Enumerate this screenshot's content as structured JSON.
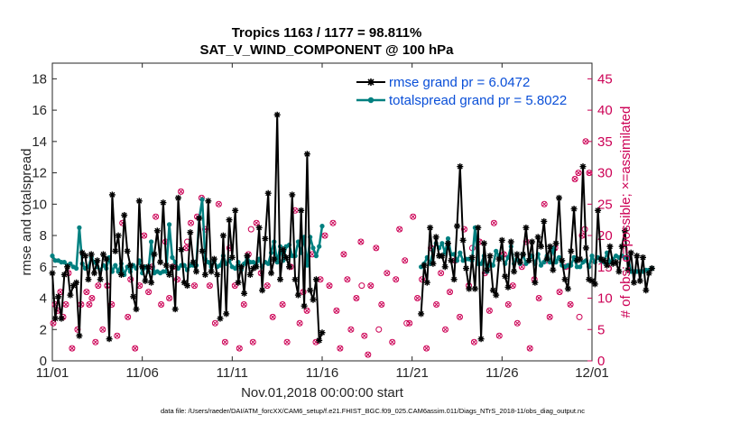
{
  "chart_data": {
    "type": "line",
    "title_line1": "Tropics 1163 / 1177 = 98.811%",
    "title_line2": "SAT_V_WIND_COMPONENT @ 100 hPa",
    "xlabel": "Nov.01,2018 00:00:00 start",
    "ylabel": "rmse and totalspread",
    "ylabel_right": "# of obs: o=possible; ×=assimilated",
    "footer": "data file: /Users/raeder/DAI/ATM_forcXX/CAM6_setup/f.e21.FHIST_BGC.f09_025.CAM6assim.011/Diags_NTrS_2018-11/obs_diag_output.nc",
    "xlim": [
      0,
      30
    ],
    "ylim": [
      0,
      19
    ],
    "ylim_right": [
      0,
      47.5
    ],
    "x_ticks": [
      0,
      5,
      10,
      15,
      20,
      25,
      30
    ],
    "x_tick_labels": [
      "11/01",
      "11/06",
      "11/11",
      "11/16",
      "11/21",
      "11/26",
      "12/01"
    ],
    "y_ticks": [
      0,
      2,
      4,
      6,
      8,
      10,
      12,
      14,
      16,
      18
    ],
    "y_tick_labels": [
      "0",
      "2",
      "4",
      "6",
      "8",
      "10",
      "12",
      "14",
      "16",
      "18"
    ],
    "y_ticks_right": [
      0,
      5,
      10,
      15,
      20,
      25,
      30,
      35,
      40,
      45
    ],
    "y_tick_labels_right": [
      "0",
      "5",
      "10",
      "15",
      "20",
      "25",
      "30",
      "35",
      "40",
      "45"
    ],
    "legend_position": "top-right",
    "colors": {
      "rmse": "#000000",
      "spread": "#008080",
      "obs": "#cc0055",
      "legend_text": "#0a4fd8"
    },
    "series": [
      {
        "name": "rmse grand pr = 6.0472",
        "segments": [
          {
            "x0": 0,
            "values": [
              5.6,
              2.7,
              4.1,
              2.7,
              5.5,
              6.0,
              4.2,
              4.8,
              5.0,
              1.6,
              6.9,
              6.7,
              5.2,
              6.8,
              5.6,
              6.4,
              5.2,
              6.8,
              6.5,
              1.4,
              10.6,
              7.0,
              8.0,
              5.5,
              9.3,
              7.0,
              6.1,
              4.1,
              3.3,
              10.2,
              6.0,
              5.1,
              6.0,
              5.0,
              6.8,
              8.3,
              6.3,
              10.1,
              6.1,
              5.5,
              6.0,
              3.3,
              10.4,
              7.1,
              5.0,
              4.8,
              8.2,
              6.3,
              5.7,
              9.1,
              7.0,
              5.5,
              10.2,
              5.7,
              6.5,
              5.5,
              2.7,
              8.0,
              3.0,
              9.0,
              6.6,
              9.6,
              5.0,
              6.0,
              4.3,
              6.7,
              5.5,
              5.9,
              6.0,
              8.5,
              4.5,
              7.8,
              10.7,
              5.6,
              6.5,
              15.7,
              5.2,
              7.1,
              6.6,
              6.0,
              10.6,
              5.2,
              4.2,
              9.6,
              3.5,
              13.2,
              4.5,
              3.9,
              5.2,
              1.3,
              1.8
            ]
          },
          {
            "x0": 20.5,
            "values": [
              3.0,
              6.1,
              5.0,
              8.5,
              6.2,
              7.9,
              6.7,
              6.7,
              6.0,
              7.5,
              6.4,
              5.2,
              8.6,
              12.4,
              7.7,
              5.9,
              4.6,
              6.6,
              4.6,
              8.5,
              1.4,
              7.5,
              5.8,
              6.7,
              4.5,
              4.2,
              6.5,
              7.7,
              5.4,
              4.7,
              7.6,
              5.7,
              6.8,
              6.3,
              6.8,
              8.5,
              6.4,
              7.6,
              5.0,
              7.9,
              7.3,
              8.9,
              6.5,
              7.3,
              5.8,
              7.5,
              10.4,
              6.4,
              5.2,
              4.6,
              7.0,
              9.7,
              6.4,
              6.5,
              12.4,
              7.2,
              5.2,
              5.1,
              4.9,
              9.6,
              6.5,
              6.4,
              6.1,
              7.3,
              6.2,
              6.3,
              5.7,
              7.3,
              8.3,
              5.8,
              6.9,
              5.0,
              6.7,
              5.1,
              6.6,
              4.5,
              5.6,
              5.9
            ]
          }
        ]
      },
      {
        "name": "totalspread grand pr = 5.8022",
        "segments": [
          {
            "x0": 0,
            "values": [
              6.7,
              6.4,
              6.4,
              6.3,
              6.3,
              6.1,
              6.2,
              6.0,
              5.9,
              8.5,
              6.2,
              5.9,
              6.0,
              6.6,
              6.3,
              6.0,
              5.8,
              6.1,
              5.9,
              6.6,
              5.7,
              6.1,
              5.7,
              6.2,
              5.5,
              6.0,
              5.7,
              6.1,
              5.9,
              6.4,
              5.6,
              6.0,
              5.7,
              7.6,
              5.6,
              5.7,
              5.6,
              5.7,
              5.7,
              8.7,
              6.6,
              6.3,
              5.9,
              6.1,
              6.1,
              5.8,
              6.1,
              6.1,
              6.1,
              9.1,
              10.3,
              6.5,
              6.3,
              6.0,
              6.4,
              6.0,
              6.1,
              6.7,
              6.2,
              6.4,
              6.0,
              5.9,
              6.3,
              5.8,
              6.2,
              6.6,
              6.3,
              6.3,
              6.1,
              6.5,
              6.0,
              6.3,
              6.2,
              6.9,
              7.6,
              6.3,
              7.3,
              6.4,
              7.3,
              7.4,
              6.7,
              6.7,
              7.6,
              6.9,
              7.9,
              6.1,
              7.9,
              7.2,
              6.7,
              7.3,
              8.6
            ]
          },
          {
            "x0": 20.5,
            "values": [
              6.0,
              6.2,
              6.6,
              6.2,
              7.0,
              7.5,
              7.2,
              7.5,
              6.9,
              7.8,
              6.8,
              6.8,
              6.4,
              6.9,
              6.4,
              6.5,
              6.5,
              6.4,
              8.5,
              6.2,
              6.2,
              6.7,
              5.7,
              6.2,
              6.1,
              7.0,
              6.7,
              6.6,
              6.2,
              6.6,
              7.3,
              6.2,
              6.5,
              6.2,
              6.8,
              6.2,
              6.4,
              6.7,
              6.2,
              6.8,
              6.1,
              6.3,
              6.7,
              6.3,
              7.2,
              6.3,
              6.6,
              6.1,
              6.0,
              6.1,
              6.1,
              6.6,
              6.0,
              6.0,
              6.3,
              6.4,
              6.0,
              6.7,
              6.3,
              6.6,
              6.4,
              6.3,
              6.9,
              6.3,
              6.5,
              6.7,
              6.6,
              6.7,
              6.6,
              6.6,
              5.7,
              5.7,
              5.7,
              5.7,
              5.7,
              5.8,
              5.8,
              5.9
            ]
          }
        ]
      }
    ],
    "obs_assimilated": {
      "x": [
        0.05,
        0.15,
        0.3,
        0.45,
        0.6,
        0.75,
        0.9,
        1.1,
        1.4,
        1.6,
        1.9,
        2.05,
        2.2,
        2.4,
        2.55,
        2.8,
        3.05,
        3.3,
        3.6,
        3.9,
        4.2,
        4.35,
        4.6,
        4.85,
        5.1,
        5.35,
        5.55,
        5.75,
        6.05,
        6.3,
        6.5,
        6.7,
        6.95,
        7.15,
        7.45,
        7.7,
        7.9,
        8.05,
        8.3,
        8.5,
        8.75,
        9.05,
        9.25,
        9.6,
        9.85,
        10.15,
        10.4,
        10.65,
        10.9,
        11.15,
        11.35,
        11.6,
        11.95,
        12.25,
        12.5,
        12.8,
        13.05,
        13.25,
        13.5,
        13.75,
        13.95,
        14.15,
        14.45,
        14.65,
        14.9,
        15.15,
        15.4,
        15.6,
        15.8,
        16.0,
        16.2,
        16.4,
        16.6,
        16.9,
        17.15,
        17.35,
        17.55,
        17.7,
        18.0,
        18.3,
        18.6,
        18.9,
        19.1,
        19.3,
        19.6,
        19.85,
        20.05,
        20.3,
        20.55,
        20.8,
        21.05,
        21.35,
        21.6,
        21.85,
        22.1,
        22.4,
        22.65,
        22.9,
        23.15,
        23.45,
        23.75,
        24.05,
        24.3,
        24.55,
        24.85,
        25.1,
        25.35,
        25.6,
        25.85,
        26.1,
        26.35,
        26.55,
        26.8,
        27.05,
        27.35,
        27.65,
        27.95,
        28.2,
        28.55,
        28.8,
        29.05,
        29.25,
        29.45,
        29.65,
        29.85
      ],
      "y": [
        6,
        9,
        8,
        11,
        7,
        9,
        14,
        2,
        5,
        9,
        11,
        9,
        10,
        3,
        12,
        5,
        12,
        9,
        4,
        22,
        7,
        13,
        2,
        12,
        20,
        11,
        15,
        23,
        9,
        19,
        10,
        15,
        13,
        27,
        18,
        22,
        12,
        23,
        26,
        21,
        12,
        6,
        25,
        3,
        18,
        12,
        2,
        9,
        17,
        3,
        22,
        14,
        12,
        7,
        16,
        9,
        3,
        15,
        24,
        6,
        11,
        8,
        17,
        3,
        13,
        20,
        12,
        22,
        8,
        2,
        17,
        13,
        5,
        10,
        19,
        4,
        1,
        12,
        18,
        9,
        14,
        3,
        13,
        21,
        16,
        6,
        23,
        10,
        13,
        2,
        18,
        9,
        14,
        5,
        11,
        16,
        7,
        21,
        12,
        3,
        19,
        14,
        8,
        22,
        4,
        17,
        9,
        12,
        6,
        15,
        19,
        2,
        13,
        10,
        25,
        7,
        18,
        11,
        15,
        9,
        29,
        30,
        20,
        35,
        30
      ]
    },
    "obs_possible": {
      "x": [
        7.5,
        11.05,
        17.2,
        18.15,
        19.7,
        23.35,
        27.5,
        29.3,
        29.6
      ],
      "y": [
        19,
        21,
        12,
        5,
        6,
        18,
        16,
        7,
        21
      ]
    }
  }
}
